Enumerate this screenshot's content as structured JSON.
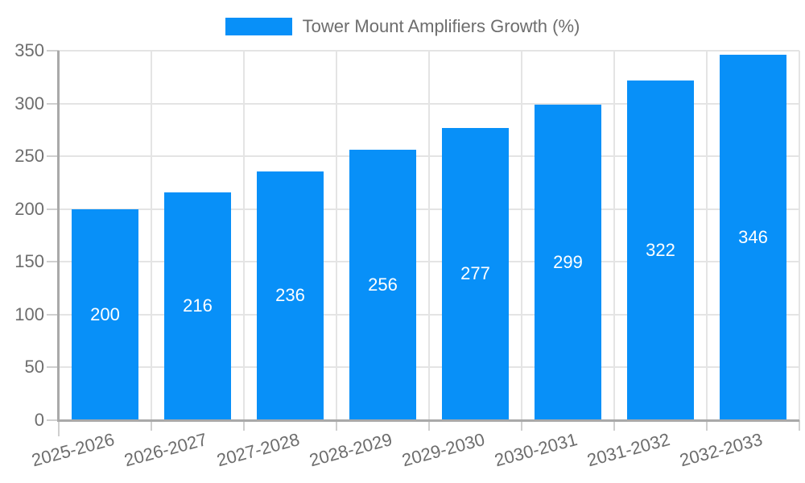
{
  "chart_data": {
    "type": "bar",
    "title": "Tower Mount Amplifiers Growth (%)",
    "categories": [
      "2025-2026",
      "2026-2027",
      "2027-2028",
      "2028-2029",
      "2029-2030",
      "2030-2031",
      "2031-2032",
      "2032-2033"
    ],
    "values": [
      200,
      216,
      236,
      256,
      277,
      299,
      322,
      346
    ],
    "value_labels": [
      "200",
      "216",
      "236",
      "256",
      "277",
      "299",
      "322",
      "346"
    ],
    "xlabel": "",
    "ylabel": "",
    "ylim": [
      0,
      350
    ],
    "yticks": [
      0,
      50,
      100,
      150,
      200,
      250,
      300,
      350
    ],
    "grid": true,
    "legend_position": "top-center",
    "x_label_rotation_deg": -15,
    "colors": {
      "bar": "#0890f8",
      "gridline": "#e4e4e4",
      "axis_line": "#a9a9a9",
      "tick_mark": "#cfcfcf",
      "axis_text": "#6d6d6d",
      "value_text": "#ffffff",
      "background": "#ffffff"
    }
  }
}
